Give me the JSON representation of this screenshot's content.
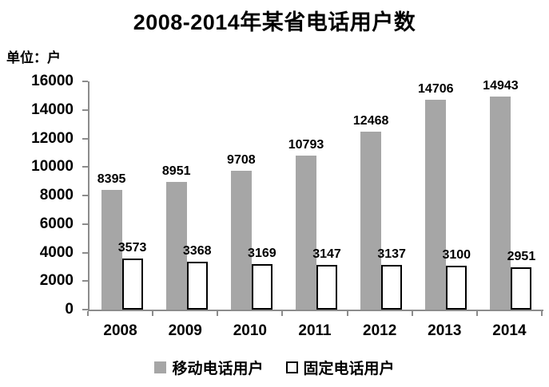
{
  "title": "2008-2014年某省电话用户数",
  "unit_label": "单位：户",
  "chart_data": {
    "type": "bar",
    "title": "2008-2014年某省电话用户数",
    "unit": "单位：户",
    "categories": [
      "2008",
      "2009",
      "2010",
      "2011",
      "2012",
      "2013",
      "2014"
    ],
    "series": [
      {
        "name": "移动电话用户",
        "values": [
          8395,
          8951,
          9708,
          10793,
          12468,
          14706,
          14943
        ],
        "fill": "#a6a6a6",
        "border": "none"
      },
      {
        "name": "固定电话用户",
        "values": [
          3573,
          3368,
          3169,
          3147,
          3137,
          3100,
          2951
        ],
        "fill": "#ffffff",
        "border": "#000000"
      }
    ],
    "ylim": [
      0,
      16000
    ],
    "ytick_step": 2000,
    "yticks": [
      "0",
      "2000",
      "4000",
      "6000",
      "8000",
      "10000",
      "12000",
      "14000",
      "16000"
    ],
    "grid": false,
    "data_labels": true,
    "legend_position": "bottom",
    "axis_color": "#8c8c8c",
    "text_color": "#000000"
  }
}
